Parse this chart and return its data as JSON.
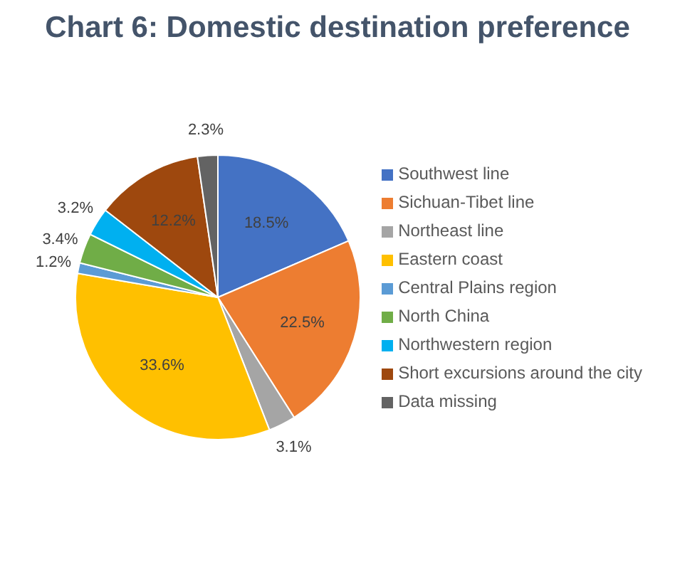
{
  "chart_data": {
    "type": "pie",
    "title": "Chart 6: Domestic destination preference",
    "categories": [
      "Southwest line",
      "Sichuan-Tibet line",
      "Northeast line",
      "Eastern coast",
      "Central Plains region",
      "North China",
      "Northwestern region",
      "Short excursions around the city",
      "Data missing"
    ],
    "values": [
      18.5,
      22.5,
      3.1,
      33.6,
      1.2,
      3.4,
      3.2,
      12.2,
      2.3
    ],
    "value_labels": [
      "18.5%",
      "22.5%",
      "3.1%",
      "33.6%",
      "1.2%",
      "3.4%",
      "3.2%",
      "12.2%",
      "2.3%"
    ],
    "colors": [
      "#4472c4",
      "#ed7d31",
      "#a5a5a5",
      "#ffc000",
      "#5b9bd5",
      "#70ad47",
      "#00b0f0",
      "#9e480e",
      "#636363"
    ],
    "legend": "right"
  }
}
